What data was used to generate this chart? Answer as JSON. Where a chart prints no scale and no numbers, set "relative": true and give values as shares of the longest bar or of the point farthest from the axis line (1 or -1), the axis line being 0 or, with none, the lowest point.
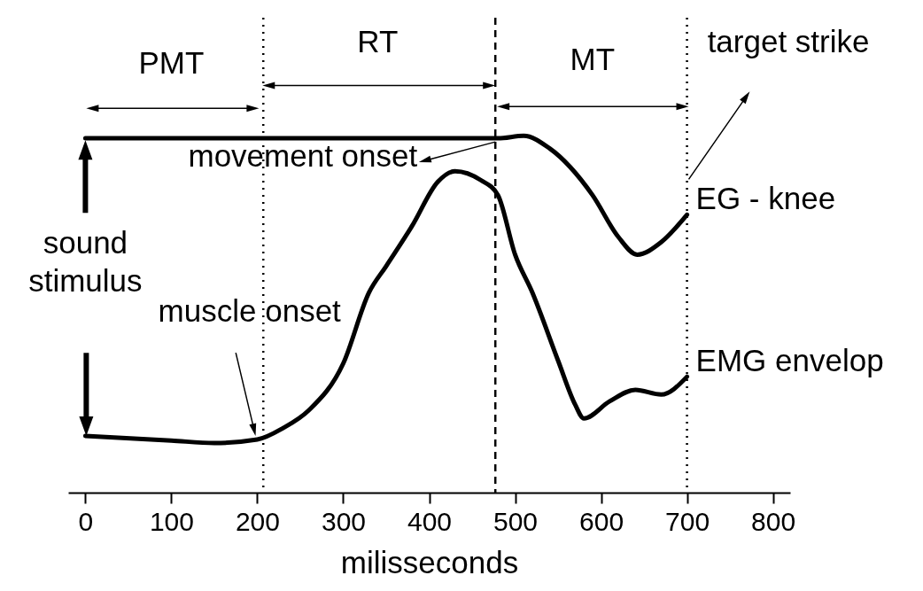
{
  "chart_data": {
    "type": "line",
    "relative": true,
    "xlabel": "milisseconds",
    "xlim": [
      -20,
      820
    ],
    "xticks": [
      0,
      100,
      200,
      300,
      400,
      500,
      600,
      700,
      800
    ],
    "grid": false,
    "marker": "none",
    "line_style": "solid",
    "series": [
      {
        "name": "EG - knee",
        "color": "#000000",
        "x": [
          0,
          100,
          200,
          300,
          400,
          480,
          510,
          540,
          590,
          620,
          642,
          670,
          700
        ],
        "values": [
          0.993,
          0.993,
          0.993,
          0.993,
          0.993,
          0.993,
          1.0,
          0.965,
          0.834,
          0.717,
          0.667,
          0.702,
          0.779
        ]
      },
      {
        "name": "EMG envelop",
        "color": "#000000",
        "x": [
          0,
          100,
          150,
          200,
          230,
          260,
          300,
          330,
          350,
          380,
          410,
          430,
          460,
          480,
          500,
          520,
          550,
          570,
          580,
          610,
          640,
          670,
          700
        ],
        "values": [
          0.159,
          0.146,
          0.139,
          0.149,
          0.181,
          0.231,
          0.362,
          0.561,
          0.635,
          0.747,
          0.871,
          0.901,
          0.876,
          0.834,
          0.667,
          0.561,
          0.37,
          0.246,
          0.208,
          0.256,
          0.288,
          0.275,
          0.325
        ]
      }
    ],
    "ref_lines": [
      {
        "axis": "x",
        "value": 207,
        "line_style": "dotted"
      },
      {
        "axis": "x",
        "value": 477,
        "line_style": "dashed"
      },
      {
        "axis": "x",
        "value": 700,
        "line_style": "dotted"
      }
    ],
    "annotations": [
      "PMT",
      "RT",
      "MT",
      "target strike",
      "movement onset",
      "muscle onset",
      "sound\nstimulus"
    ]
  }
}
